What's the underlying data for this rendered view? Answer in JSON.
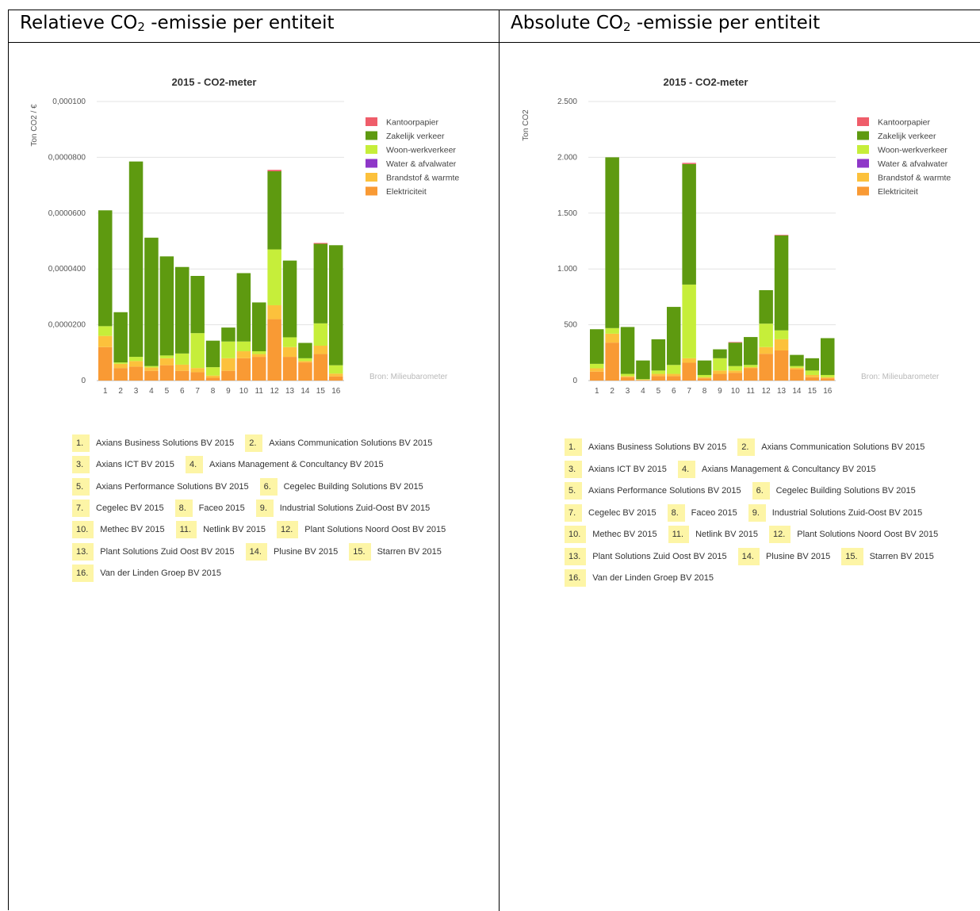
{
  "headers": {
    "left": {
      "pre": "Relatieve CO",
      "sub": "2",
      "post": " -emissie per entiteit"
    },
    "right": {
      "pre": "Absolute CO",
      "sub": "2",
      "post": " -emissie per entiteit"
    }
  },
  "series_colors": {
    "Elektriciteit": "#f99a34",
    "Brandstof & warmte": "#fcc13c",
    "Water & afvalwater": "#8e37c8",
    "Woon-werkverkeer": "#c6ee3a",
    "Zakelijk verkeer": "#5e9a10",
    "Kantoorpapier": "#ef5d6a"
  },
  "chart_data": [
    {
      "type": "bar",
      "stacked": true,
      "title": "2015 - CO2-meter",
      "ylabel": "Ton CO2 / €",
      "xlabel": "",
      "categories": [
        "1",
        "2",
        "3",
        "4",
        "5",
        "6",
        "7",
        "8",
        "9",
        "10",
        "11",
        "12",
        "13",
        "14",
        "15",
        "16"
      ],
      "yticks": [
        0,
        2e-05,
        4e-05,
        6e-05,
        8e-05,
        0.0001
      ],
      "ytick_labels": [
        "0",
        "0,0000200",
        "0,0000400",
        "0,0000600",
        "0,0000800",
        "0,000100"
      ],
      "ylim": [
        0,
        0.0001
      ],
      "grid": true,
      "legend_position": "top-right",
      "legend": [
        "Kantoorpapier",
        "Zakelijk verkeer",
        "Woon-werkverkeer",
        "Water & afvalwater",
        "Brandstof & warmte",
        "Elektriciteit"
      ],
      "source": "Bron: Milieubarometer",
      "series": [
        {
          "name": "Elektriciteit",
          "values": [
            1.2e-05,
            4.5e-06,
            5e-06,
            3.5e-06,
            5.5e-06,
            3.5e-06,
            3e-06,
            1e-06,
            3.5e-06,
            8e-06,
            8.5e-06,
            2.2e-05,
            8.5e-06,
            6.5e-06,
            9.5e-06,
            1.5e-06
          ]
        },
        {
          "name": "Brandstof & warmte",
          "values": [
            4e-06,
            1.5e-06,
            2e-06,
            1.2e-06,
            2.5e-06,
            2.2e-06,
            1.5e-06,
            8e-07,
            4.5e-06,
            2.5e-06,
            1e-06,
            5e-06,
            3.5e-06,
            5e-07,
            3e-06,
            1e-06
          ]
        },
        {
          "name": "Water & afvalwater",
          "values": [
            0,
            0,
            0,
            0,
            0,
            0,
            0,
            0,
            0,
            0,
            0,
            0,
            0,
            0,
            0,
            0
          ]
        },
        {
          "name": "Woon-werkverkeer",
          "values": [
            3.5e-06,
            5e-07,
            1.5e-06,
            5e-07,
            1e-06,
            4e-06,
            1.25e-05,
            3e-06,
            6e-06,
            3.5e-06,
            1e-06,
            2e-05,
            3.5e-06,
            1e-06,
            8e-06,
            3e-06
          ]
        },
        {
          "name": "Zakelijk verkeer",
          "values": [
            4.15e-05,
            1.8e-05,
            7e-05,
            4.6e-05,
            3.55e-05,
            3.1e-05,
            2.05e-05,
            9.5e-06,
            5e-06,
            2.45e-05,
            1.75e-05,
            2.8e-05,
            2.75e-05,
            5.5e-06,
            2.85e-05,
            4.3e-05
          ]
        },
        {
          "name": "Kantoorpapier",
          "values": [
            0,
            0,
            0,
            0,
            0,
            0,
            0,
            0,
            0,
            0,
            0,
            5e-07,
            0,
            0,
            3e-07,
            0
          ]
        }
      ]
    },
    {
      "type": "bar",
      "stacked": true,
      "title": "2015 - CO2-meter",
      "ylabel": "Ton CO2",
      "xlabel": "",
      "categories": [
        "1",
        "2",
        "3",
        "4",
        "5",
        "6",
        "7",
        "8",
        "9",
        "10",
        "11",
        "12",
        "13",
        "14",
        "15",
        "16"
      ],
      "yticks": [
        0,
        500,
        1000,
        1500,
        2000,
        2500
      ],
      "ytick_labels": [
        "0",
        "500",
        "1.000",
        "1.500",
        "2.000",
        "2.500"
      ],
      "ylim": [
        0,
        2500
      ],
      "grid": true,
      "legend_position": "top-right",
      "legend": [
        "Kantoorpapier",
        "Zakelijk verkeer",
        "Woon-werkverkeer",
        "Water & afvalwater",
        "Brandstof & warmte",
        "Elektriciteit"
      ],
      "source": "Bron: Milieubarometer",
      "series": [
        {
          "name": "Elektriciteit",
          "values": [
            80,
            340,
            30,
            5,
            40,
            40,
            160,
            20,
            60,
            70,
            110,
            240,
            270,
            100,
            30,
            20
          ]
        },
        {
          "name": "Brandstof & warmte",
          "values": [
            30,
            80,
            10,
            3,
            20,
            20,
            40,
            10,
            30,
            20,
            10,
            60,
            100,
            15,
            20,
            10
          ]
        },
        {
          "name": "Water & afvalwater",
          "values": [
            0,
            0,
            0,
            0,
            0,
            0,
            0,
            0,
            0,
            0,
            0,
            0,
            0,
            0,
            0,
            0
          ]
        },
        {
          "name": "Woon-werkverkeer",
          "values": [
            40,
            50,
            20,
            5,
            30,
            80,
            660,
            20,
            110,
            40,
            20,
            210,
            80,
            15,
            40,
            20
          ]
        },
        {
          "name": "Zakelijk verkeer",
          "values": [
            310,
            1530,
            420,
            167,
            280,
            520,
            1080,
            130,
            80,
            210,
            250,
            300,
            850,
            100,
            110,
            330
          ]
        },
        {
          "name": "Kantoorpapier",
          "values": [
            0,
            0,
            0,
            0,
            0,
            0,
            10,
            0,
            0,
            5,
            0,
            0,
            5,
            0,
            0,
            0
          ]
        }
      ]
    }
  ],
  "entities": [
    {
      "num": "1.",
      "name": "Axians Business Solutions BV 2015"
    },
    {
      "num": "2.",
      "name": "Axians Communication Solutions BV 2015"
    },
    {
      "num": "3.",
      "name": "Axians ICT BV 2015"
    },
    {
      "num": "4.",
      "name": "Axians Management & Concultancy BV 2015"
    },
    {
      "num": "5.",
      "name": "Axians Performance Solutions BV 2015"
    },
    {
      "num": "6.",
      "name": "Cegelec Building Solutions BV 2015"
    },
    {
      "num": "7.",
      "name": "Cegelec BV 2015"
    },
    {
      "num": "8.",
      "name": "Faceo 2015"
    },
    {
      "num": "9.",
      "name": "Industrial Solutions Zuid-Oost BV 2015"
    },
    {
      "num": "10.",
      "name": "Methec BV 2015"
    },
    {
      "num": "11.",
      "name": "Netlink BV 2015"
    },
    {
      "num": "12.",
      "name": "Plant Solutions Noord Oost BV 2015"
    },
    {
      "num": "13.",
      "name": "Plant Solutions Zuid Oost BV 2015"
    },
    {
      "num": "14.",
      "name": "Plusine BV 2015"
    },
    {
      "num": "15.",
      "name": "Starren BV 2015"
    },
    {
      "num": "16.",
      "name": "Van der Linden Groep BV 2015"
    }
  ]
}
